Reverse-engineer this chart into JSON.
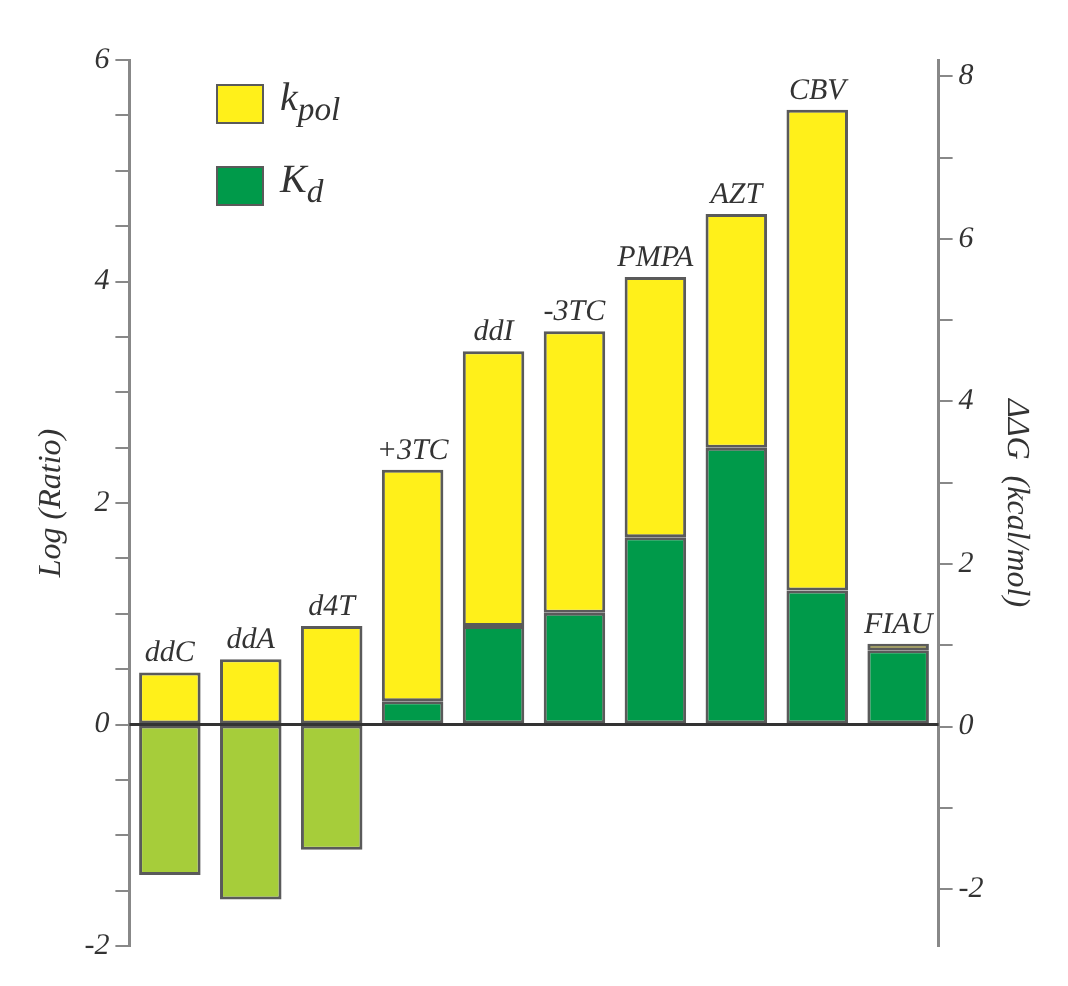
{
  "chart_data": {
    "type": "bar",
    "stacked": true,
    "ylabel": "Log (Ratio)",
    "y2label": "ΔΔG  (kcal/mol)",
    "categories": [
      "ddC",
      "ddA",
      "d4T",
      "+3TC",
      "ddI",
      "-3TC",
      "PMPA",
      "AZT",
      "CBV",
      "FIAU"
    ],
    "series": [
      {
        "name": "K$_{d}$",
        "color": "#009a4a",
        "colors": [
          "#a6cd3a",
          "#a6cd3a",
          "#a6cd3a",
          "#009a4a",
          "#009a4a",
          "#009a4a",
          "#009a4a",
          "#009a4a",
          "#009a4a",
          "#009a4a"
        ],
        "values": [
          -1.36,
          -1.58,
          -1.13,
          0.21,
          0.89,
          1.01,
          1.69,
          2.5,
          1.21,
          0.67
        ]
      },
      {
        "name": "k$_{pol}$",
        "color": "#fff01a",
        "values": [
          0.47,
          0.59,
          0.89,
          2.09,
          2.48,
          2.54,
          2.35,
          2.11,
          4.34,
          0.06
        ]
      }
    ],
    "ylim": [
      -2,
      6
    ],
    "yticks": [
      -2,
      {
        "value": -1.5,
        "label": null
      },
      {
        "value": -1,
        "label": null
      },
      {
        "value": -0.5,
        "label": null
      },
      0,
      {
        "value": 0.5,
        "label": null
      },
      {
        "value": 1,
        "label": null
      },
      {
        "value": 1.5,
        "label": null
      },
      2,
      {
        "value": 2.5,
        "label": null
      },
      {
        "value": 3,
        "label": null
      },
      {
        "value": 3.5,
        "label": null
      },
      4,
      {
        "value": 4.5,
        "label": null
      },
      {
        "value": 5,
        "label": null
      },
      {
        "value": 5.5,
        "label": null
      },
      6
    ],
    "y2lim": [
      -2.7,
      8.2
    ],
    "y2ticks": [
      -2,
      {
        "value": -1,
        "label": null
      },
      0,
      {
        "value": 1,
        "label": null
      },
      2,
      {
        "value": 3,
        "label": null
      },
      4,
      {
        "value": 5,
        "label": null
      },
      6,
      {
        "value": 7,
        "label": null
      },
      8
    ],
    "ref_lines": [
      {
        "axis": "y",
        "value": 0,
        "color": "#333333"
      }
    ],
    "grid": false,
    "legend": "top left"
  }
}
